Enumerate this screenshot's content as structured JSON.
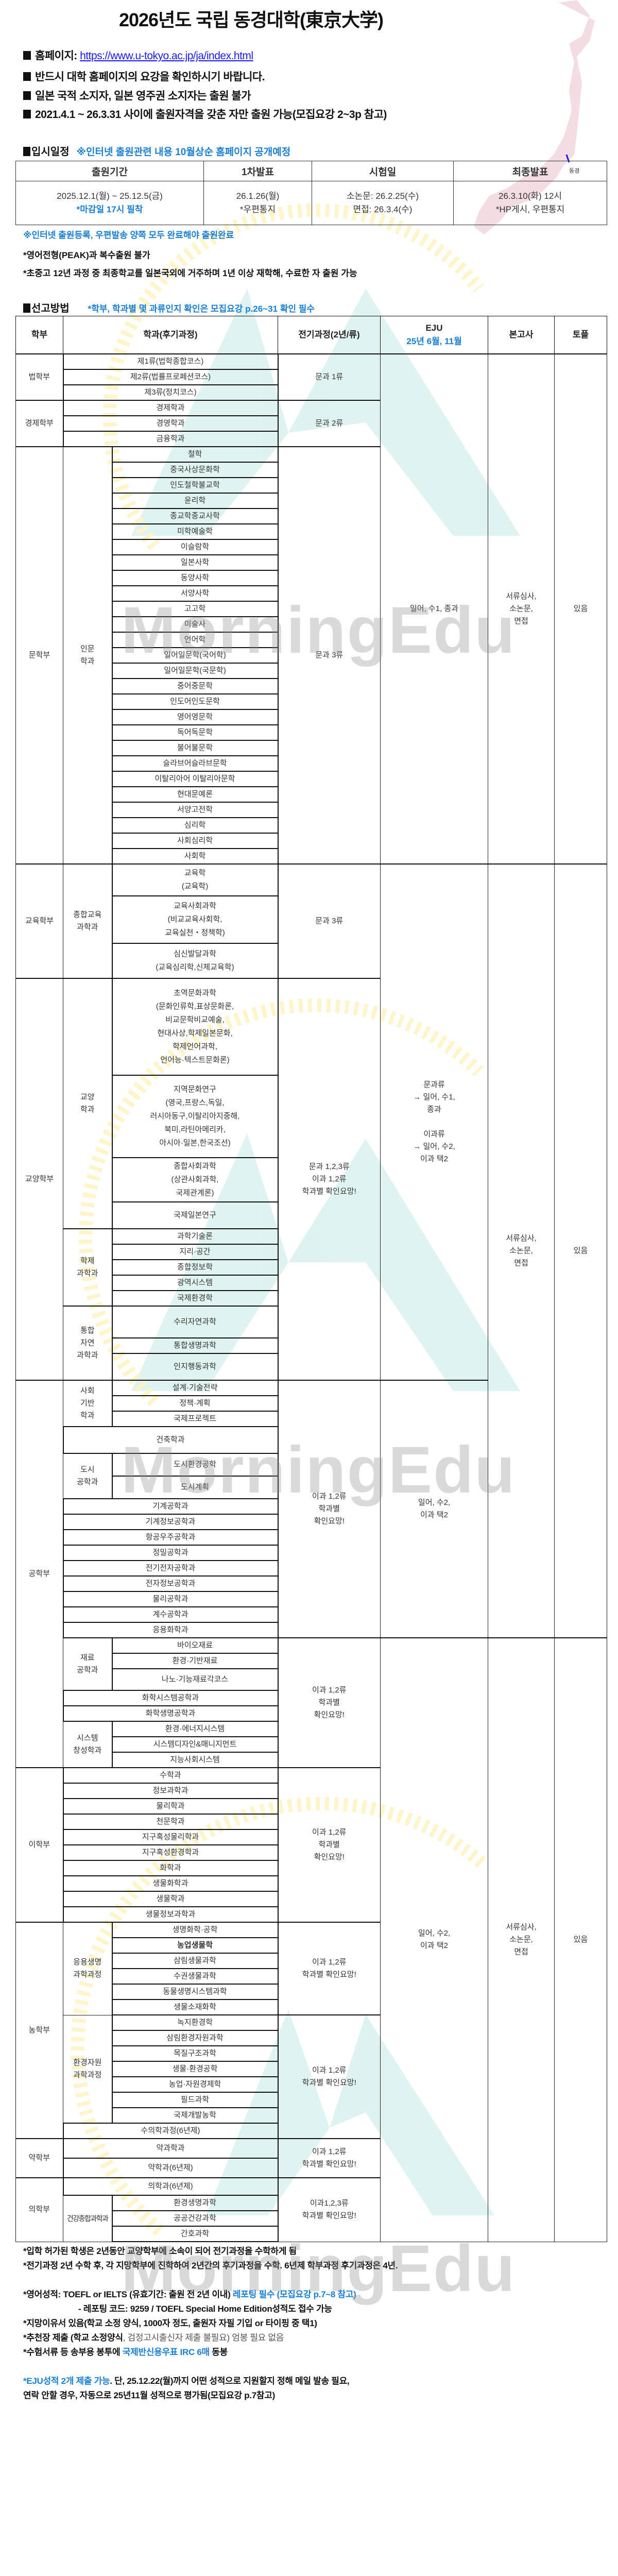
{
  "header": {
    "title": "2026년도 국립 동경대학(東京大学)",
    "homepage_label": "홈페이지: ",
    "homepage_url": "https://www.u-tokyo.ac.jp/ja/index.html",
    "bullets": [
      "반드시 대학 홈페이지의 요강을 확인하시기 바랍니다.",
      "일본 국적 소지자, 일본 영주권 소지자는 출원 불가",
      "2021.4.1 ~ 26.3.31 사이에 출원자격을 갖춘 자만 출원 가능(모집요강 2~3p 참고)"
    ],
    "map_label": "동경",
    "map_color": "#f3dde3"
  },
  "schedule": {
    "heading": "입시일정",
    "note": "※인터넷 출원관련 내용 10월상순 홈페이지 공개예정",
    "columns": [
      "출원기간",
      "1차발표",
      "시험일",
      "최종발표"
    ],
    "cells": [
      {
        "main": "2025.12.1(월) ~ 25.12.5(금)",
        "sub": "*마감일 17시 필착"
      },
      {
        "main": "26.1.26(월)",
        "sub": "*우편통지"
      },
      {
        "main": "소논문: 26.2.25(수)",
        "sub": "면접: 26.3.4(수)"
      },
      {
        "main": "26.3.10(화) 12시",
        "sub": "*HP게시, 우편통지"
      }
    ],
    "notes": [
      "※인터넷 출원등록, 우편발송 양쪽 모두 완료해야 출원완료",
      "*영어전형(PEAK)과 복수출원 불가",
      "*초중고 12년 과정 중 최종학교를 일본국외에 거주하며 1년 이상 재학해, 수료한 자 출원 가능"
    ]
  },
  "selection": {
    "heading": "선고방법",
    "note": "*학부, 학과별 몇 과류인지 확인은 모집요강 p.26~31 확인 필수",
    "headers": {
      "faculty": "학부",
      "dept": "학과(후기과정)",
      "early": "전기과정(2년/류)",
      "eju": "EJU",
      "eju_sub": "25년 6월, 11월",
      "exam": "본고사",
      "toefl": "토플"
    },
    "eju": {
      "a": "일어, 수1, 종과",
      "b": "문과류\n→ 일어, 수1,\n종과\n\n이과류\n→ 일어, 수2,\n이과 택2",
      "c": "일어, 수2,\n이과 택2",
      "d": "일어, 수2,\n이과 택2"
    },
    "exam": {
      "a": "서류심사,\n소논문,\n면접",
      "b": "서류심사,\n소논문,\n면접",
      "d": "서류심사,\n소논문,\n면접"
    },
    "toefl": {
      "a": "있음",
      "b": "있음",
      "d": "있음"
    },
    "highlight_color": "#ff0000",
    "law": {
      "name": "법학부",
      "early": "문과 1류",
      "depts": [
        "제1류(법학종합코스)",
        "제2류(법률프로페션코스)",
        "제3류(정치코스)"
      ]
    },
    "econ": {
      "name": "경제학부",
      "early": "문과 2류",
      "depts": [
        "경제학과",
        "경영학과",
        "금융학과"
      ]
    },
    "lit": {
      "name": "문학부",
      "course": "인문\n학과",
      "early": "문과 3류",
      "depts": [
        "철학",
        "중국사상문화학",
        "인도철학불교학",
        "윤리학",
        "종교학종교사학",
        "미학예술학",
        "이슬람학",
        "일본사학",
        "동양사학",
        "서양사학",
        "고고학",
        "미술사",
        "언어학",
        "일어일문학(국어학)",
        "일어일문학(국문학)",
        "중어중문학",
        "인도어인도문학",
        "영어영문학",
        "독어독문학",
        "불어불문학",
        "슬라브어슬라브문학",
        "이탈리아어 이탈리아문학",
        "현대문예론",
        "서양고전학",
        "심리학",
        "사회심리학",
        "사회학"
      ]
    },
    "edu": {
      "name": "교육학부",
      "course": "종합교육\n과학과",
      "early": "문과 3류",
      "depts": [
        "교육학\n(교육학)",
        "교육사회과학\n(비교교육사회학,\n교육실천・정책학)",
        "심신발달과학\n(교육심리학,신체교육학)"
      ]
    },
    "arts": {
      "name": "교양학부",
      "early": "문과 1,2,3류\n이과 1,2류\n학과별 확인요망!",
      "courses": [
        {
          "name": "교양\n학과",
          "depts": [
            "초역문화과학\n(문화인류학,표상문화론,\n비교문학비교예술,\n현대사상,학제일본문화,\n학제언어과학,\n언어능·텍스트문화론)",
            "지역문화연구\n(영국,프랑스,독일,\n러시아동구,이탈리아지중해,\n북미,라틴아메리카,\n아시아·일본,한국조선)",
            "종합사회과학\n(상관사회과학,\n국제관계론)",
            "국제일본연구"
          ]
        },
        {
          "name": "학제\n과학과",
          "depts": [
            "과학기술론",
            "지리·공간",
            "종합정보학",
            "광역시스템",
            "국제환경학"
          ]
        },
        {
          "name": "통합\n자연\n과학과",
          "depts": [
            "수리자연과학",
            "통합생명과학",
            "인지행동과학"
          ]
        }
      ]
    },
    "eng": {
      "name": "공학부",
      "early_1": "이과 1,2류\n학과별\n확인요망!",
      "early_2": "이과 1,2류\n학과별\n확인요망!",
      "civil": {
        "name": "사회\n기반\n학과",
        "depts": [
          "설계·기술전략",
          "정책·계획",
          "국제프로젝트"
        ]
      },
      "architecture": "건축학과",
      "urban": {
        "name": "도시\n공학과",
        "depts": [
          "도시환경공학",
          "도시계획"
        ]
      },
      "solo_1": [
        "기계공학과",
        "기계정보공학과",
        "항공우주공학과",
        "정밀공학과",
        "전기전자공학과",
        "전자정보공학과",
        "물리공학과",
        "계수공학과",
        "응용화학과"
      ],
      "materials": {
        "name": "재료\n공학과",
        "depts": [
          "바이오재료",
          "환경·기반재료",
          "나노·기능재료각코스"
        ]
      },
      "solo_2": [
        "화학시스템공학과",
        "화학생명공학과"
      ],
      "systems": {
        "name": "시스템\n창성학과",
        "depts": [
          "환경·에너지시스템",
          "시스템디자인&매니지먼트",
          "지능사회시스템"
        ]
      }
    },
    "sci": {
      "name": "이학부",
      "early": "이과 1,2류\n학과별\n확인요망!",
      "depts": [
        "수학과",
        "정보과학과",
        "물리학과",
        "천문학과",
        "지구혹성물리학과",
        "지구혹성환경학과",
        "화학과",
        "생물화학과",
        "생물학과",
        "생물정보과학과"
      ]
    },
    "agr": {
      "name": "농학부",
      "early_1": "이과 1,2류\n학과별 확인요망!",
      "early_2": "이과 1,2류\n학과별 확인요망!",
      "courses": [
        {
          "name": "응용생명\n과학과정",
          "depts": [
            "생명화학·공학",
            "농업생물학",
            "삼림생물과학",
            "수권생물과학",
            "동물생명시스템과학",
            "생물소재화학"
          ]
        },
        {
          "name": "환경자원\n과학과정",
          "depts": [
            "녹지환경학",
            "삼림환경자원과학",
            "목질구조과학",
            "생물·환경공학",
            "농업·자원경제학",
            "필드과학",
            "국제개발농학"
          ]
        }
      ],
      "solo": "수의학과정(6년제)"
    },
    "pharm": {
      "name": "약학부",
      "early": "이과 1,2류\n학과별 확인요망!",
      "depts": [
        "약과학과",
        "약학과(6년제)"
      ]
    },
    "med": {
      "name": "의학부",
      "early": "이과1,2,3류\n학과별 확인요망!",
      "solo": "의학과(6년제)",
      "course": "건강종합과학과",
      "depts": [
        "환경생명과학",
        "공공건강과학",
        "간호과학"
      ]
    }
  },
  "footnotes": {
    "f1": "*입학 허가된 학생은 2년동안 교양학부에 소속이 되어 전기과정을 수학하게 됨",
    "f2": "*전기과정 2년 수학 후, 각 지망학부에 진학하여 2년간의 후기과정을 수학. 6년제 학부과정 후기과정은 4년.",
    "english_a": "*영어성적: TOEFL or IELTS (유효기간: 출원 전 2년 이내) ",
    "english_b": "레포팅 필수 (모집요강 p.7~8 참고)",
    "reporting": "- 레포팅 코드: 9259 / TOEFL Special Home Edition성적도 접수 가능",
    "motivation": "*지망이유서 있음(학교 소정 양식, 1000자 정도, 출원자 자필 기입 or 타이핑 중 택1)",
    "recommend_a": "*추천장 제출 (학교 소정양식",
    "recommend_b": ", 검정고시출신자 제출 불필요) 엄봉 필요 없음",
    "irc_a": "*수험서류 등 송부용 봉투에 ",
    "irc_b": "국제반신용우표 IRC 6매",
    "irc_c": " 동봉",
    "eju_a": "*EJU성적 2개 제출 가능",
    "eju_b": ". 단, 25.12.22(월)까지 어떤 성적으로 지원할지 정해 메일 발송 필요,",
    "eju_c": " 연락 안할 경우, 자동으로 25년11월 성적으로 평가됨(모집요강 p.7참고)"
  },
  "watermark": "MorningEdu",
  "colors": {
    "accent_blue": "#1a7fd4",
    "link_blue": "#1a1aff",
    "watermark_teal": "#cfeee9",
    "watermark_yellow": "#fff3c4"
  }
}
